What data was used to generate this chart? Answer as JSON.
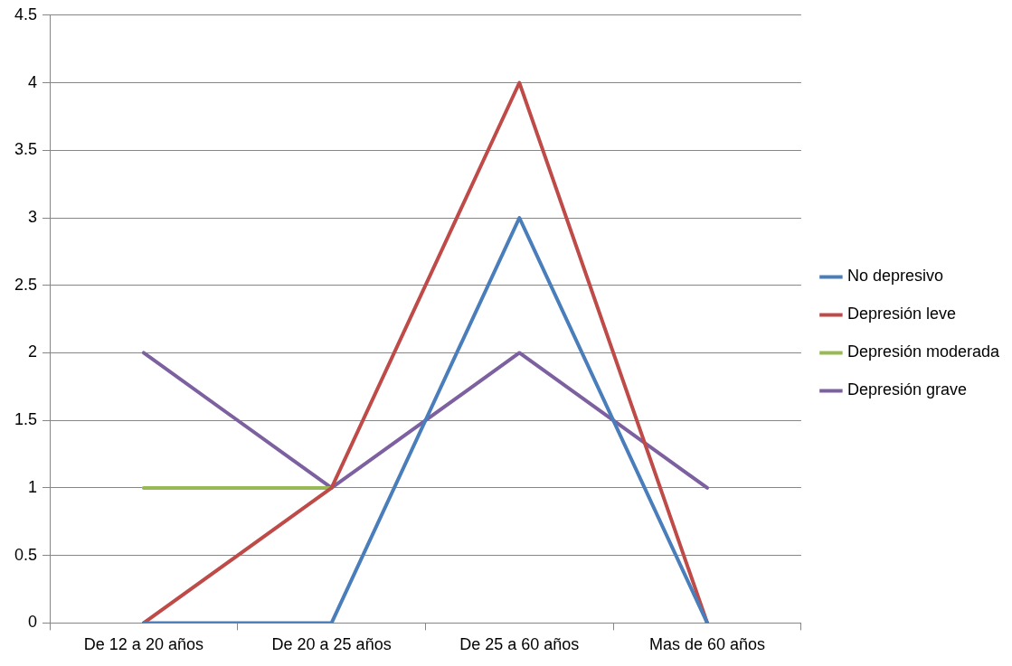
{
  "chart_data": {
    "type": "line",
    "categories": [
      "De 12 a 20 años",
      "De 20 a 25 años",
      "De 25 a 60 años",
      "Mas de 60 años"
    ],
    "series": [
      {
        "name": "No depresivo",
        "color": "#4a7ebb",
        "values": [
          0,
          0,
          3,
          0
        ]
      },
      {
        "name": "Depresión leve",
        "color": "#be4b48",
        "values": [
          0,
          1,
          4,
          0
        ]
      },
      {
        "name": "Depresión moderada",
        "color": "#98b954",
        "values": [
          1,
          1,
          null,
          null
        ]
      },
      {
        "name": "Depresión grave",
        "color": "#7d60a0",
        "values": [
          2,
          1,
          2,
          1
        ]
      }
    ],
    "ylim": [
      0,
      4.5
    ],
    "yticks": [
      0,
      0.5,
      1,
      1.5,
      2,
      2.5,
      3,
      3.5,
      4,
      4.5
    ],
    "grid": "y",
    "legend": "right",
    "marker": "none",
    "line_style": "solid"
  }
}
